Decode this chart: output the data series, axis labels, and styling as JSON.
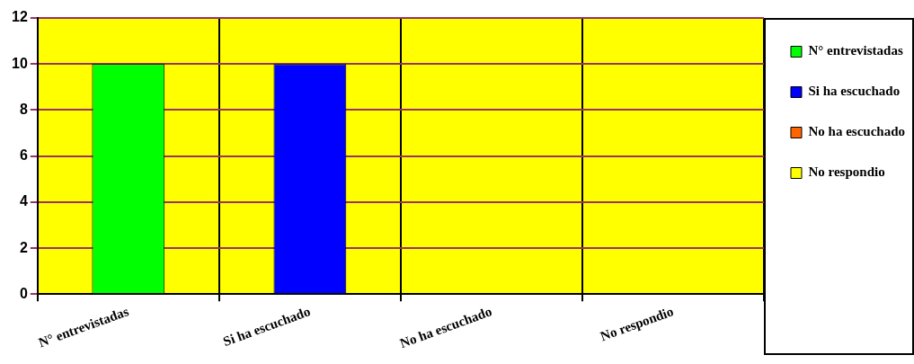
{
  "chart_data": {
    "type": "bar",
    "categories": [
      "N° entrevistadas",
      "Si ha escuchado",
      "No ha escuchado",
      "No respondio"
    ],
    "series": [
      {
        "name": "N° entrevistadas",
        "color": "#00ff00",
        "values": [
          10,
          null,
          null,
          null
        ]
      },
      {
        "name": "Si ha escuchado",
        "color": "#0000ff",
        "values": [
          null,
          10,
          null,
          null
        ]
      },
      {
        "name": "No ha escuchado",
        "color": "#ff6600",
        "values": [
          null,
          null,
          0,
          null
        ]
      },
      {
        "name": "No respondio",
        "color": "#ffff00",
        "values": [
          null,
          null,
          null,
          0
        ]
      }
    ],
    "ylim": [
      0,
      12
    ],
    "yticks": [
      0,
      2,
      4,
      6,
      8,
      10,
      12
    ],
    "grid": true,
    "legend": "right"
  }
}
